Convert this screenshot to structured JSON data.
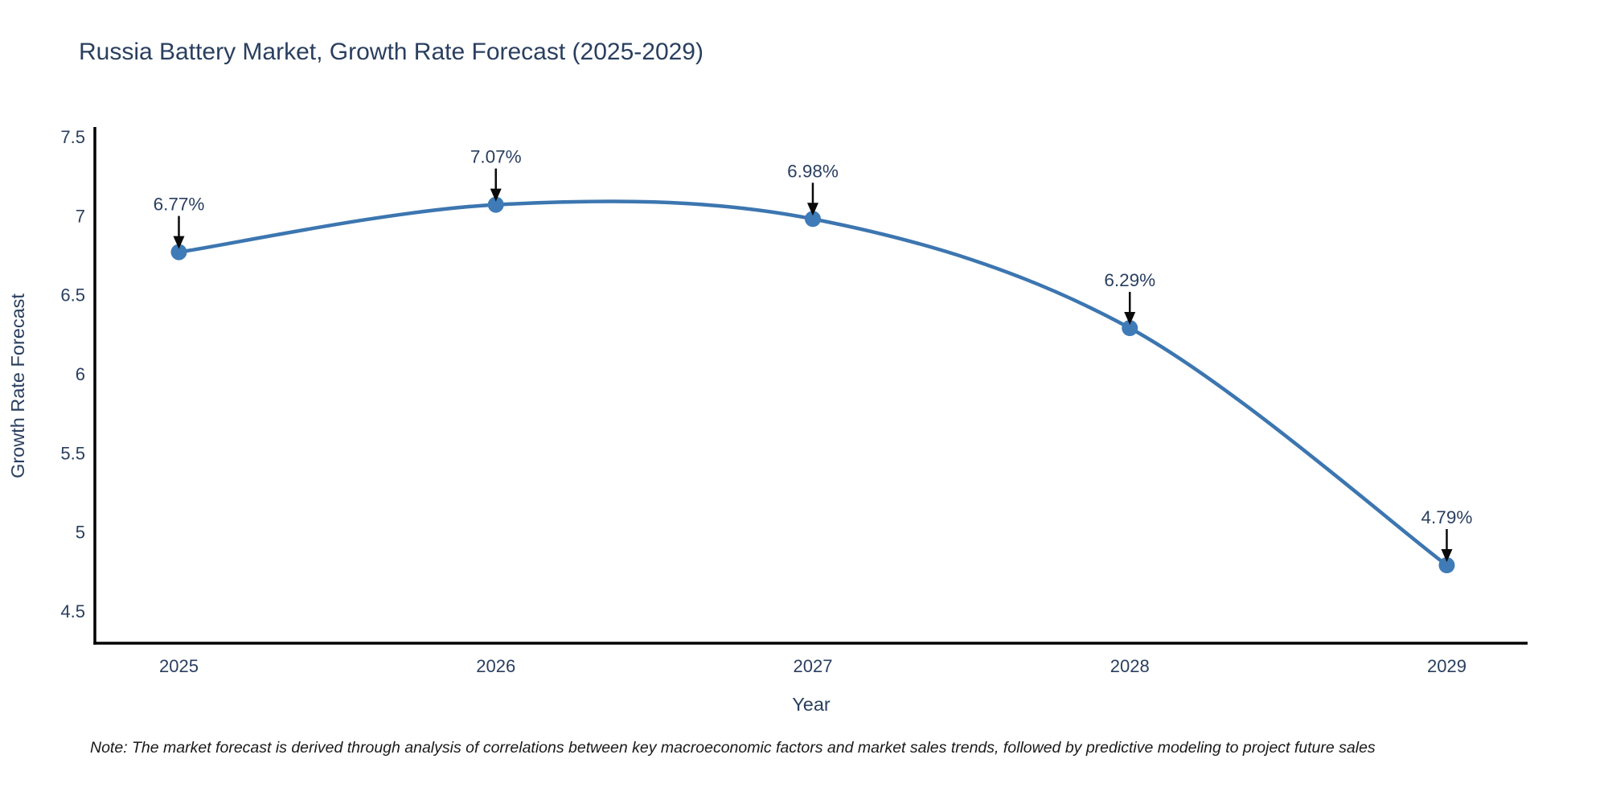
{
  "note": "Note: The market forecast is derived through analysis of correlations between key macroeconomic factors and market sales trends, followed by predictive modeling to project future sales",
  "chart_data": {
    "type": "line",
    "line_shape": "spline",
    "title": "Russia Battery Market, Growth Rate Forecast (2025-2029)",
    "xlabel": "Year",
    "ylabel": "Growth Rate Forecast",
    "x": [
      2025,
      2026,
      2027,
      2028,
      2029
    ],
    "x_labels": [
      "2025",
      "2026",
      "2027",
      "2028",
      "2029"
    ],
    "values": [
      6.77,
      7.07,
      6.98,
      6.29,
      4.79
    ],
    "point_labels": [
      "6.77%",
      "7.07%",
      "6.98%",
      "6.29%",
      "4.79%"
    ],
    "ytick_values": [
      4.5,
      5,
      5.5,
      6,
      6.5,
      7,
      7.5
    ],
    "ytick_labels": [
      "4.5",
      "5",
      "5.5",
      "6",
      "6.5",
      "7",
      "7.5"
    ],
    "ylim": [
      4.297,
      7.551
    ],
    "xlim": [
      2024.735,
      2029.255
    ],
    "grid": false,
    "legend": "none",
    "annotations": "arrow-down-to-point",
    "line_color": "#3c76b0",
    "marker_color": "#3f7bb6",
    "axis_color": "#000000",
    "text_color": "#2a3f5f",
    "annotation_arrow_color": "#0a0a0a"
  }
}
